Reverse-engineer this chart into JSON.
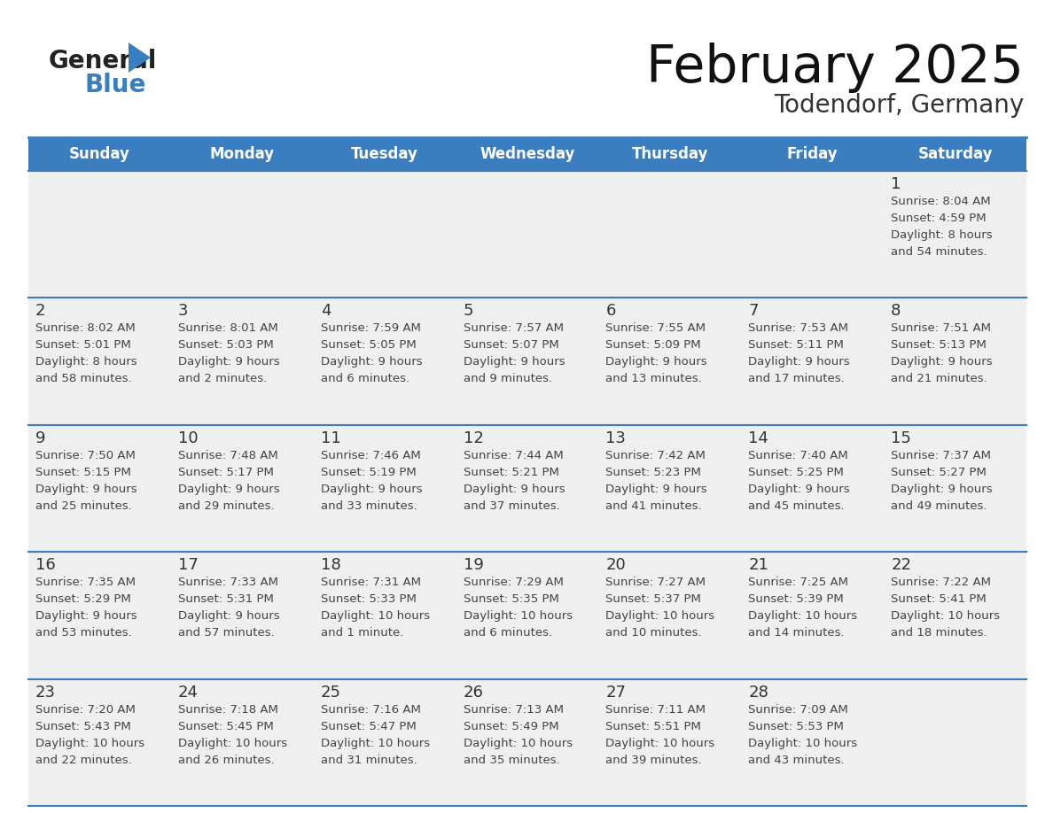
{
  "title": "February 2025",
  "subtitle": "Todendorf, Germany",
  "days_of_week": [
    "Sunday",
    "Monday",
    "Tuesday",
    "Wednesday",
    "Thursday",
    "Friday",
    "Saturday"
  ],
  "header_bg": "#3a7ebf",
  "header_text_color": "#ffffff",
  "cell_bg": "#efefef",
  "cell_bg_white": "#ffffff",
  "row0_top_bg": "#e8e8e8",
  "grid_line_color": "#3a7ebf",
  "day_number_color": "#333333",
  "info_text_color": "#444444",
  "logo_general_color": "#222222",
  "logo_blue_color": "#3a7ebf",
  "logo_triangle_color": "#3a7ebf",
  "calendar_data": [
    {
      "day": 1,
      "col": 6,
      "row": 0,
      "sunrise": "8:04 AM",
      "sunset": "4:59 PM",
      "daylight_h": "8 hours",
      "daylight_m": "54 minutes"
    },
    {
      "day": 2,
      "col": 0,
      "row": 1,
      "sunrise": "8:02 AM",
      "sunset": "5:01 PM",
      "daylight_h": "8 hours",
      "daylight_m": "58 minutes"
    },
    {
      "day": 3,
      "col": 1,
      "row": 1,
      "sunrise": "8:01 AM",
      "sunset": "5:03 PM",
      "daylight_h": "9 hours",
      "daylight_m": "2 minutes"
    },
    {
      "day": 4,
      "col": 2,
      "row": 1,
      "sunrise": "7:59 AM",
      "sunset": "5:05 PM",
      "daylight_h": "9 hours",
      "daylight_m": "6 minutes"
    },
    {
      "day": 5,
      "col": 3,
      "row": 1,
      "sunrise": "7:57 AM",
      "sunset": "5:07 PM",
      "daylight_h": "9 hours",
      "daylight_m": "9 minutes"
    },
    {
      "day": 6,
      "col": 4,
      "row": 1,
      "sunrise": "7:55 AM",
      "sunset": "5:09 PM",
      "daylight_h": "9 hours",
      "daylight_m": "13 minutes"
    },
    {
      "day": 7,
      "col": 5,
      "row": 1,
      "sunrise": "7:53 AM",
      "sunset": "5:11 PM",
      "daylight_h": "9 hours",
      "daylight_m": "17 minutes"
    },
    {
      "day": 8,
      "col": 6,
      "row": 1,
      "sunrise": "7:51 AM",
      "sunset": "5:13 PM",
      "daylight_h": "9 hours",
      "daylight_m": "21 minutes"
    },
    {
      "day": 9,
      "col": 0,
      "row": 2,
      "sunrise": "7:50 AM",
      "sunset": "5:15 PM",
      "daylight_h": "9 hours",
      "daylight_m": "25 minutes"
    },
    {
      "day": 10,
      "col": 1,
      "row": 2,
      "sunrise": "7:48 AM",
      "sunset": "5:17 PM",
      "daylight_h": "9 hours",
      "daylight_m": "29 minutes"
    },
    {
      "day": 11,
      "col": 2,
      "row": 2,
      "sunrise": "7:46 AM",
      "sunset": "5:19 PM",
      "daylight_h": "9 hours",
      "daylight_m": "33 minutes"
    },
    {
      "day": 12,
      "col": 3,
      "row": 2,
      "sunrise": "7:44 AM",
      "sunset": "5:21 PM",
      "daylight_h": "9 hours",
      "daylight_m": "37 minutes"
    },
    {
      "day": 13,
      "col": 4,
      "row": 2,
      "sunrise": "7:42 AM",
      "sunset": "5:23 PM",
      "daylight_h": "9 hours",
      "daylight_m": "41 minutes"
    },
    {
      "day": 14,
      "col": 5,
      "row": 2,
      "sunrise": "7:40 AM",
      "sunset": "5:25 PM",
      "daylight_h": "9 hours",
      "daylight_m": "45 minutes"
    },
    {
      "day": 15,
      "col": 6,
      "row": 2,
      "sunrise": "7:37 AM",
      "sunset": "5:27 PM",
      "daylight_h": "9 hours",
      "daylight_m": "49 minutes"
    },
    {
      "day": 16,
      "col": 0,
      "row": 3,
      "sunrise": "7:35 AM",
      "sunset": "5:29 PM",
      "daylight_h": "9 hours",
      "daylight_m": "53 minutes"
    },
    {
      "day": 17,
      "col": 1,
      "row": 3,
      "sunrise": "7:33 AM",
      "sunset": "5:31 PM",
      "daylight_h": "9 hours",
      "daylight_m": "57 minutes"
    },
    {
      "day": 18,
      "col": 2,
      "row": 3,
      "sunrise": "7:31 AM",
      "sunset": "5:33 PM",
      "daylight_h": "10 hours",
      "daylight_m": "1 minute"
    },
    {
      "day": 19,
      "col": 3,
      "row": 3,
      "sunrise": "7:29 AM",
      "sunset": "5:35 PM",
      "daylight_h": "10 hours",
      "daylight_m": "6 minutes"
    },
    {
      "day": 20,
      "col": 4,
      "row": 3,
      "sunrise": "7:27 AM",
      "sunset": "5:37 PM",
      "daylight_h": "10 hours",
      "daylight_m": "10 minutes"
    },
    {
      "day": 21,
      "col": 5,
      "row": 3,
      "sunrise": "7:25 AM",
      "sunset": "5:39 PM",
      "daylight_h": "10 hours",
      "daylight_m": "14 minutes"
    },
    {
      "day": 22,
      "col": 6,
      "row": 3,
      "sunrise": "7:22 AM",
      "sunset": "5:41 PM",
      "daylight_h": "10 hours",
      "daylight_m": "18 minutes"
    },
    {
      "day": 23,
      "col": 0,
      "row": 4,
      "sunrise": "7:20 AM",
      "sunset": "5:43 PM",
      "daylight_h": "10 hours",
      "daylight_m": "22 minutes"
    },
    {
      "day": 24,
      "col": 1,
      "row": 4,
      "sunrise": "7:18 AM",
      "sunset": "5:45 PM",
      "daylight_h": "10 hours",
      "daylight_m": "26 minutes"
    },
    {
      "day": 25,
      "col": 2,
      "row": 4,
      "sunrise": "7:16 AM",
      "sunset": "5:47 PM",
      "daylight_h": "10 hours",
      "daylight_m": "31 minutes"
    },
    {
      "day": 26,
      "col": 3,
      "row": 4,
      "sunrise": "7:13 AM",
      "sunset": "5:49 PM",
      "daylight_h": "10 hours",
      "daylight_m": "35 minutes"
    },
    {
      "day": 27,
      "col": 4,
      "row": 4,
      "sunrise": "7:11 AM",
      "sunset": "5:51 PM",
      "daylight_h": "10 hours",
      "daylight_m": "39 minutes"
    },
    {
      "day": 28,
      "col": 5,
      "row": 4,
      "sunrise": "7:09 AM",
      "sunset": "5:53 PM",
      "daylight_h": "10 hours",
      "daylight_m": "43 minutes"
    }
  ]
}
